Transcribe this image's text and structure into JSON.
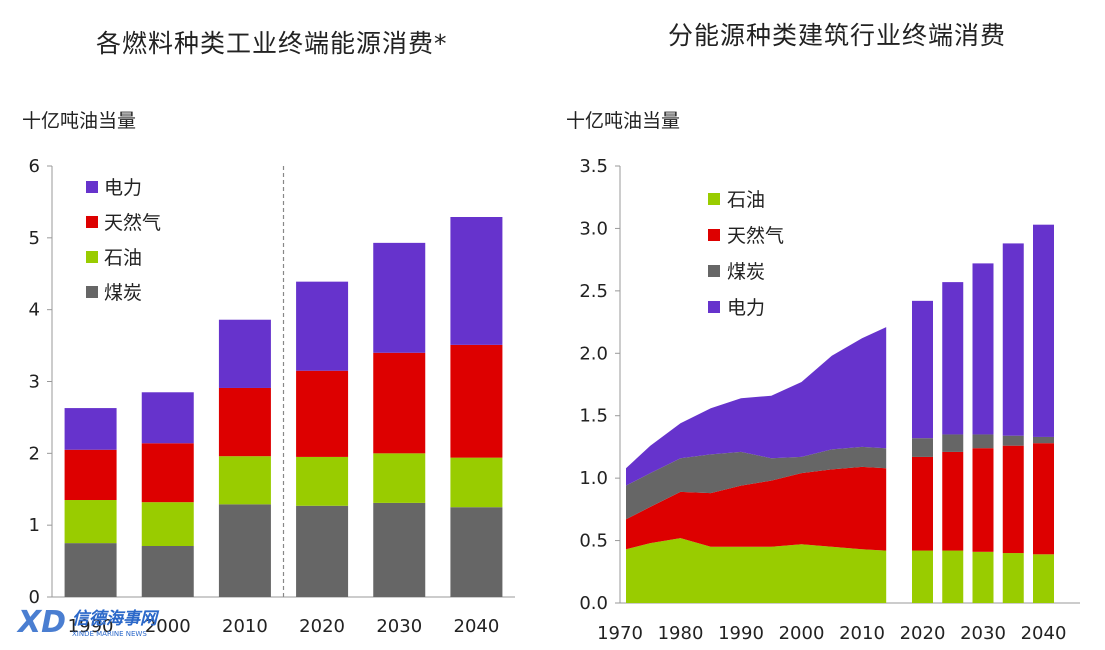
{
  "chart_data": [
    {
      "type": "bar",
      "stacked": true,
      "title": "各燃料种类工业终端能源消费*",
      "ylabel": "十亿吨油当量",
      "ylim": [
        0,
        6
      ],
      "yticks": [
        "0",
        "1",
        "2",
        "3",
        "4",
        "5",
        "6"
      ],
      "categories": [
        "1990",
        "2000",
        "2010",
        "2020",
        "2030",
        "2040"
      ],
      "divider_after": "2010",
      "series": [
        {
          "name": "煤炭",
          "color": "#666666",
          "values": [
            0.75,
            0.71,
            1.29,
            1.27,
            1.31,
            1.25
          ]
        },
        {
          "name": "石油",
          "color": "#99cc00",
          "values": [
            0.6,
            0.61,
            0.67,
            0.68,
            0.69,
            0.69
          ]
        },
        {
          "name": "天然气",
          "color": "#dd0000",
          "values": [
            0.7,
            0.82,
            0.95,
            1.2,
            1.4,
            1.57
          ]
        },
        {
          "name": "电力",
          "color": "#6633cc",
          "values": [
            0.58,
            0.71,
            0.95,
            1.24,
            1.53,
            1.78
          ]
        }
      ],
      "legend_order": [
        "电力",
        "天然气",
        "石油",
        "煤炭"
      ],
      "legend_position": "top-left",
      "grid": false
    },
    {
      "type": "area",
      "stacked": true,
      "title": "分能源种类建筑行业终端消费",
      "ylabel": "十亿吨油当量",
      "ylim": [
        0,
        3.5
      ],
      "yticks": [
        "0.0",
        "0.5",
        "1.0",
        "1.5",
        "2.0",
        "2.5",
        "3.0",
        "3.5"
      ],
      "xticks": [
        "1970",
        "1980",
        "1990",
        "2000",
        "2010",
        "2020",
        "2030",
        "2040"
      ],
      "area_x": [
        1971,
        1975,
        1980,
        1985,
        1990,
        1995,
        2000,
        2005,
        2010,
        2014
      ],
      "area_series": [
        {
          "name": "石油",
          "color": "#99cc00",
          "values": [
            0.43,
            0.48,
            0.52,
            0.45,
            0.45,
            0.45,
            0.47,
            0.45,
            0.43,
            0.42
          ]
        },
        {
          "name": "天然气",
          "color": "#dd0000",
          "values": [
            0.24,
            0.29,
            0.37,
            0.43,
            0.49,
            0.53,
            0.57,
            0.62,
            0.66,
            0.66
          ]
        },
        {
          "name": "煤炭",
          "color": "#666666",
          "values": [
            0.27,
            0.27,
            0.27,
            0.31,
            0.27,
            0.18,
            0.13,
            0.16,
            0.16,
            0.16
          ]
        },
        {
          "name": "电力",
          "color": "#6633cc",
          "values": [
            0.14,
            0.22,
            0.28,
            0.37,
            0.43,
            0.5,
            0.6,
            0.75,
            0.87,
            0.97
          ]
        }
      ],
      "bar_x": [
        2020,
        2025,
        2030,
        2035,
        2040
      ],
      "bar_series": [
        {
          "name": "石油",
          "color": "#99cc00",
          "values": [
            0.42,
            0.42,
            0.41,
            0.4,
            0.39
          ]
        },
        {
          "name": "天然气",
          "color": "#dd0000",
          "values": [
            0.75,
            0.79,
            0.83,
            0.86,
            0.89
          ]
        },
        {
          "name": "煤炭",
          "color": "#666666",
          "values": [
            0.15,
            0.14,
            0.11,
            0.08,
            0.05
          ]
        },
        {
          "name": "电力",
          "color": "#6633cc",
          "values": [
            1.1,
            1.22,
            1.37,
            1.54,
            1.7
          ]
        }
      ],
      "legend_order": [
        "石油",
        "天然气",
        "煤炭",
        "电力"
      ],
      "legend_position": "top-left",
      "grid": false
    }
  ],
  "watermark": {
    "text": "信德海事网",
    "subtext": "XINDE MARINE NEWS"
  }
}
